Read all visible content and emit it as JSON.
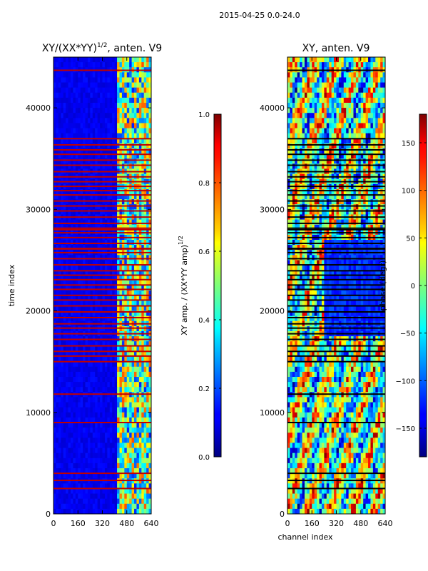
{
  "chart_data": {
    "suptitle": "2015-04-25 0.0-24.0",
    "xlabel": "channel index",
    "ylabel": "time index",
    "panels": [
      {
        "title_base": "XY/(XX*YY)",
        "title_exponent": "1/2",
        "title_suffix": ", anten. V9",
        "type": "heatmap",
        "xlim": [
          0,
          640
        ],
        "ylim": [
          0,
          45000
        ],
        "x_ticks": [
          0,
          160,
          320,
          480,
          640
        ],
        "y_ticks": [
          0,
          10000,
          20000,
          30000,
          40000
        ],
        "colorbar": {
          "label_base": "XY amp. / (XX*YY amp)",
          "label_exponent": "1/2",
          "range": [
            0.0,
            1.0
          ],
          "ticks": [
            0.0,
            0.2,
            0.4,
            0.6,
            0.8,
            1.0
          ],
          "tick_labels": [
            "0.0",
            "0.2",
            "0.4",
            "0.6",
            "0.8",
            "1.0"
          ]
        }
      },
      {
        "title": "XY, anten. V9",
        "type": "heatmap",
        "xlim": [
          0,
          640
        ],
        "ylim": [
          0,
          45000
        ],
        "x_ticks": [
          0,
          160,
          320,
          480,
          640
        ],
        "y_ticks": [
          0,
          10000,
          20000,
          30000,
          40000
        ],
        "colorbar": {
          "label": "phase (degr)",
          "range": [
            -180,
            180
          ],
          "ticks": [
            -150,
            -100,
            -50,
            0,
            50,
            100,
            150
          ],
          "tick_labels": [
            "−150",
            "−100",
            "−50",
            "0",
            "50",
            "100",
            "150"
          ]
        }
      }
    ],
    "colormap": "jet"
  }
}
